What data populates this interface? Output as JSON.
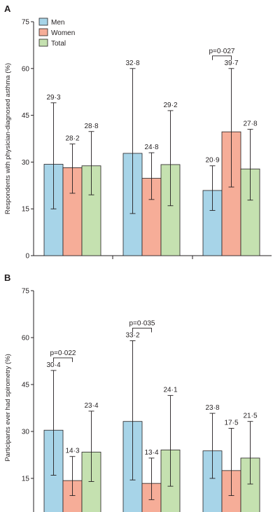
{
  "colors": {
    "men": "#a7d4e8",
    "women": "#f6ad98",
    "total": "#c5e1b0",
    "stroke": "#231f20"
  },
  "chart_data": [
    {
      "panel": "A",
      "type": "bar",
      "ylabel": "Respondents with physician-diagnosed asthma (%)",
      "ylim": [
        0,
        75
      ],
      "yticks": [
        0,
        15,
        30,
        45,
        60,
        75
      ],
      "ytick_labels": [
        "0",
        "15",
        "30",
        "45",
        "60",
        "75"
      ],
      "legend": [
        "Men",
        "Women",
        "Total"
      ],
      "legend_position": "top-left",
      "categories": [
        "",
        "",
        ""
      ],
      "series": [
        {
          "name": "Men",
          "values": [
            29.3,
            32.8,
            20.9
          ],
          "ci_low": [
            15,
            13.5,
            14.5
          ],
          "ci_high": [
            49,
            60,
            28.8
          ],
          "labels": [
            "29·3",
            "32·8",
            "20·9"
          ]
        },
        {
          "name": "Women",
          "values": [
            28.2,
            24.8,
            39.7
          ],
          "ci_low": [
            20,
            18,
            22
          ],
          "ci_high": [
            35.8,
            33,
            60
          ],
          "labels": [
            "28·2",
            "24·8",
            "39·7"
          ]
        },
        {
          "name": "Total",
          "values": [
            28.8,
            29.2,
            27.8
          ],
          "ci_low": [
            19.5,
            16,
            17.8
          ],
          "ci_high": [
            39.8,
            46.5,
            40.5
          ],
          "labels": [
            "28·8",
            "29·2",
            "27·8"
          ]
        }
      ],
      "annotations": [
        {
          "text": "p=0·027",
          "group": 2,
          "from_series": 0,
          "to_series": 1
        }
      ]
    },
    {
      "panel": "B",
      "type": "bar",
      "ylabel": "Participants ever had spirometry (%)",
      "ylim": [
        0,
        75
      ],
      "yticks": [
        15,
        30,
        45,
        60,
        75
      ],
      "ytick_labels": [
        "15",
        "30",
        "45",
        "60",
        "75"
      ],
      "categories": [
        "",
        "",
        ""
      ],
      "series": [
        {
          "name": "Men",
          "values": [
            30.4,
            33.2,
            23.8
          ],
          "ci_low": [
            16,
            14.5,
            15
          ],
          "ci_high": [
            49.5,
            59,
            35.8
          ],
          "labels": [
            "30·4",
            "33·2",
            "23·8"
          ]
        },
        {
          "name": "Women",
          "values": [
            14.3,
            13.4,
            17.5
          ],
          "ci_low": [
            9.5,
            8.2,
            9.5
          ],
          "ci_high": [
            22,
            21.5,
            31
          ],
          "labels": [
            "14·3",
            "13·4",
            "17·5"
          ]
        },
        {
          "name": "Total",
          "values": [
            23.4,
            24.1,
            21.5
          ],
          "ci_low": [
            14,
            12.5,
            13.2
          ],
          "ci_high": [
            36.5,
            41.5,
            33.2
          ],
          "labels": [
            "23·4",
            "24·1",
            "21·5"
          ]
        }
      ],
      "annotations": [
        {
          "text": "p=0·022",
          "group": 0,
          "from_series": 0,
          "to_series": 1
        },
        {
          "text": "p=0·035",
          "group": 1,
          "from_series": 0,
          "to_series": 1
        }
      ]
    }
  ]
}
